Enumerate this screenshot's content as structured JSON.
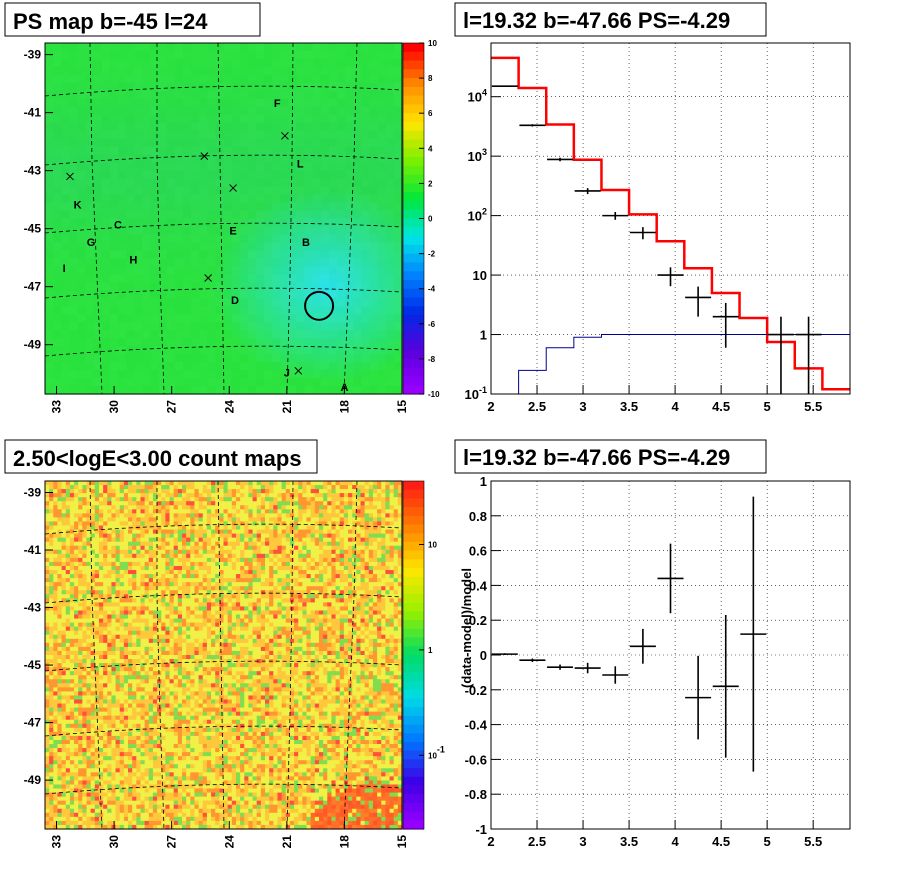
{
  "chart_data": [
    {
      "type": "heatmap",
      "title": "PS map b=-45 l=24",
      "x_ticks": [
        "33",
        "30",
        "27",
        "24",
        "21",
        "18",
        "15"
      ],
      "y_ticks": [
        "-39",
        "-41",
        "-43",
        "-45",
        "-47",
        "-49"
      ],
      "xlim": [
        33.6,
        15
      ],
      "ylim": [
        -50.7,
        -38.6
      ],
      "colorbar": {
        "scale": "linear",
        "min": -10,
        "max": 10,
        "ticks": [
          "10",
          "8",
          "6",
          "4",
          "2",
          "0",
          "-2",
          "-4",
          "-6",
          "-8",
          "-10"
        ]
      },
      "source_labels": [
        {
          "text": "F",
          "l": 21.5,
          "b": -40.8
        },
        {
          "text": "L",
          "l": 20.3,
          "b": -42.9
        },
        {
          "text": "K",
          "l": 31.9,
          "b": -44.3
        },
        {
          "text": "C",
          "l": 29.8,
          "b": -45.0
        },
        {
          "text": "E",
          "l": 23.8,
          "b": -45.2
        },
        {
          "text": "G",
          "l": 31.2,
          "b": -45.6
        },
        {
          "text": "B",
          "l": 20.0,
          "b": -45.6
        },
        {
          "text": "H",
          "l": 29.0,
          "b": -46.2
        },
        {
          "text": "I",
          "l": 32.6,
          "b": -46.5
        },
        {
          "text": "D",
          "l": 23.7,
          "b": -47.6
        },
        {
          "text": "J",
          "l": 21.0,
          "b": -50.1
        },
        {
          "text": "A",
          "l": 18.0,
          "b": -50.6
        }
      ],
      "crosses": [
        {
          "l": 21.1,
          "b": -41.8
        },
        {
          "l": 25.3,
          "b": -42.5
        },
        {
          "l": 23.8,
          "b": -43.6
        },
        {
          "l": 32.3,
          "b": -43.2
        },
        {
          "l": 25.1,
          "b": -46.7
        },
        {
          "l": 20.4,
          "b": -49.9
        }
      ],
      "circle": {
        "l": 19.32,
        "b": -47.66
      }
    },
    {
      "type": "line",
      "title": "l=19.32 b=-47.66 PS=-4.29",
      "xlim": [
        2,
        5.9
      ],
      "ylim": [
        0.1,
        80000
      ],
      "yscale": "log",
      "x_ticks": [
        "2",
        "2.5",
        "3",
        "3.5",
        "4",
        "4.5",
        "5",
        "5.5"
      ],
      "y_ticks": [
        "10^-1",
        "1",
        "10",
        "10^2",
        "10^3",
        "10^4"
      ],
      "grid": true,
      "series": [
        {
          "color": "#ff0000",
          "bins": [
            2.0,
            2.3,
            2.6,
            2.9,
            3.2,
            3.5,
            3.8,
            4.1,
            4.4,
            4.7,
            5.0,
            5.3,
            5.6,
            5.9
          ],
          "values": [
            45000,
            14000,
            3400,
            870,
            270,
            105,
            37,
            13,
            5,
            1.9,
            0.75,
            0.27,
            0.12
          ]
        },
        {
          "color": "#00008b",
          "bins": [
            2.0,
            2.3,
            2.6,
            2.9,
            3.2,
            3.5,
            3.8,
            4.1,
            4.4,
            4.7,
            5.0,
            5.3,
            5.6,
            5.9
          ],
          "values": [
            0.08,
            0.25,
            0.6,
            0.9,
            1.0,
            1.0,
            1.0,
            1.0,
            1.0,
            1.0,
            1.0,
            1.0,
            1.0
          ]
        },
        {
          "color": "#000000",
          "points": [
            {
              "x": 2.15,
              "y": 15000,
              "lo": 14700,
              "hi": 15300
            },
            {
              "x": 2.45,
              "y": 3300,
              "lo": 3150,
              "hi": 3450
            },
            {
              "x": 2.75,
              "y": 880,
              "lo": 820,
              "hi": 940
            },
            {
              "x": 3.05,
              "y": 260,
              "lo": 230,
              "hi": 290
            },
            {
              "x": 3.35,
              "y": 100,
              "lo": 85,
              "hi": 115
            },
            {
              "x": 3.65,
              "y": 52,
              "lo": 40,
              "hi": 64
            },
            {
              "x": 3.95,
              "y": 10,
              "lo": 6.5,
              "hi": 13.5
            },
            {
              "x": 4.25,
              "y": 4.2,
              "lo": 2.0,
              "hi": 6.4
            },
            {
              "x": 4.55,
              "y": 2.0,
              "lo": 0.6,
              "hi": 3.4
            },
            {
              "x": 5.15,
              "y": 1.0,
              "lo": 0.1,
              "hi": 2.0
            },
            {
              "x": 5.45,
              "y": 1.0,
              "lo": 0.1,
              "hi": 2.0
            }
          ]
        }
      ]
    },
    {
      "type": "heatmap",
      "title": "2.50<logE<3.00 count maps",
      "x_ticks": [
        "33",
        "30",
        "27",
        "24",
        "21",
        "18",
        "15"
      ],
      "y_ticks": [
        "-39",
        "-41",
        "-43",
        "-45",
        "-47",
        "-49"
      ],
      "xlim": [
        33.6,
        15
      ],
      "ylim": [
        -50.7,
        -38.6
      ],
      "colorbar": {
        "scale": "log",
        "min": 0.02,
        "max": 40,
        "ticks": [
          "10",
          "1",
          "10^-1"
        ]
      }
    },
    {
      "type": "scatter",
      "title": "l=19.32 b=-47.66 PS=-4.29",
      "ylabel": "(data-model)/model",
      "xlim": [
        2,
        5.9
      ],
      "ylim": [
        -1,
        1
      ],
      "x_ticks": [
        "2",
        "2.5",
        "3",
        "3.5",
        "4",
        "4.5",
        "5",
        "5.5"
      ],
      "y_ticks": [
        "1",
        "0.8",
        "0.6",
        "0.4",
        "0.2",
        "0",
        "-0.2",
        "-0.4",
        "-0.6",
        "-0.8",
        "-1"
      ],
      "grid": true,
      "points": [
        {
          "x": 2.15,
          "y": 0.005,
          "err": 0.005
        },
        {
          "x": 2.45,
          "y": -0.03,
          "err": 0.01
        },
        {
          "x": 2.75,
          "y": -0.07,
          "err": 0.015
        },
        {
          "x": 3.05,
          "y": -0.075,
          "err": 0.03
        },
        {
          "x": 3.35,
          "y": -0.115,
          "err": 0.05
        },
        {
          "x": 3.65,
          "y": 0.05,
          "err": 0.1
        },
        {
          "x": 3.95,
          "y": 0.44,
          "err": 0.2
        },
        {
          "x": 4.25,
          "y": -0.245,
          "err": 0.24
        },
        {
          "x": 4.55,
          "y": -0.18,
          "err": 0.41
        },
        {
          "x": 4.85,
          "y": 0.12,
          "err": 0.79
        }
      ]
    }
  ],
  "colors": {
    "grid_dash": "#000000",
    "marker": "#000000"
  }
}
